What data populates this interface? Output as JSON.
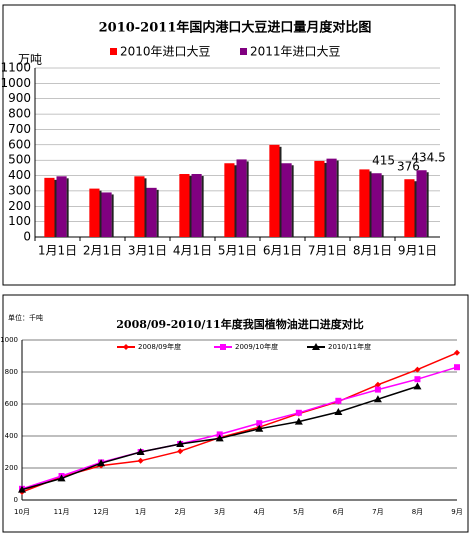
{
  "chart_data": [
    {
      "type": "bar",
      "title": "2010-2011年国内港口大豆进口量月度对比图",
      "y_label": "万吨",
      "categories": [
        "1月1日",
        "2月1日",
        "3月1日",
        "4月1日",
        "5月1日",
        "6月1日",
        "7月1日",
        "8月1日",
        "9月1日"
      ],
      "series": [
        {
          "name": "2010年进口大豆",
          "color": "#ff0000",
          "values": [
            385,
            315,
            395,
            410,
            480,
            600,
            495,
            440,
            376
          ],
          "value_labels": [
            null,
            null,
            null,
            null,
            null,
            null,
            null,
            null,
            "376"
          ]
        },
        {
          "name": "2011年进口大豆",
          "color": "#800080",
          "values": [
            395,
            290,
            320,
            410,
            505,
            480,
            510,
            415,
            434.5
          ],
          "value_labels": [
            null,
            null,
            null,
            null,
            null,
            null,
            null,
            "415",
            "434.5"
          ]
        }
      ],
      "ylim": [
        0,
        1100
      ],
      "yticks": [
        0,
        100,
        200,
        300,
        400,
        500,
        600,
        700,
        800,
        900,
        1000,
        1100
      ],
      "grid": true
    },
    {
      "type": "line",
      "title": "2008/09-2010/11年度我国植物油进口进度对比",
      "y_label": "单位：千吨",
      "categories": [
        "10月",
        "11月",
        "12月",
        "1月",
        "2月",
        "3月",
        "4月",
        "5月",
        "6月",
        "7月",
        "8月",
        "9月"
      ],
      "series": [
        {
          "name": "2008/09年度",
          "color": "#ff0000",
          "marker": "diamond",
          "values": [
            50,
            145,
            215,
            245,
            305,
            390,
            455,
            540,
            615,
            720,
            815,
            920
          ]
        },
        {
          "name": "2009/10年度",
          "color": "#ff00ff",
          "marker": "square",
          "values": [
            70,
            150,
            235,
            300,
            350,
            410,
            480,
            545,
            620,
            690,
            755,
            830
          ]
        },
        {
          "name": "2010/11年度",
          "color": "#000000",
          "marker": "triangle",
          "values": [
            65,
            135,
            230,
            300,
            350,
            385,
            445,
            490,
            550,
            630,
            710,
            null
          ]
        }
      ],
      "ylim": [
        0,
        1000
      ],
      "yticks": [
        0,
        200,
        400,
        600,
        800,
        1000
      ],
      "grid": true
    }
  ]
}
